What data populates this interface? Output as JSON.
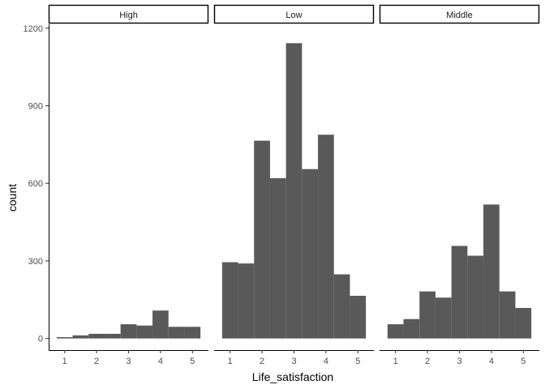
{
  "chart_data": {
    "type": "bar",
    "subtype": "faceted-histogram",
    "xlabel": "Life_satisfaction",
    "ylabel": "count",
    "ylim": [
      -45,
      1215
    ],
    "xlim": [
      0.5,
      5.5
    ],
    "x_ticks": [
      1,
      2,
      3,
      4,
      5
    ],
    "y_ticks": [
      0,
      300,
      600,
      900,
      1200
    ],
    "bin_width": 0.5,
    "grid": false,
    "legend": "none",
    "bar_color": "#595959",
    "facets": [
      {
        "label": "High",
        "bins": [
          {
            "x0": 0.75,
            "x1": 1.25,
            "count": 5
          },
          {
            "x0": 1.25,
            "x1": 1.75,
            "count": 12
          },
          {
            "x0": 1.75,
            "x1": 2.25,
            "count": 18
          },
          {
            "x0": 2.25,
            "x1": 2.75,
            "count": 18
          },
          {
            "x0": 2.75,
            "x1": 3.25,
            "count": 55
          },
          {
            "x0": 3.25,
            "x1": 3.75,
            "count": 50
          },
          {
            "x0": 3.75,
            "x1": 4.25,
            "count": 108
          },
          {
            "x0": 4.25,
            "x1": 4.75,
            "count": 45
          },
          {
            "x0": 4.75,
            "x1": 5.25,
            "count": 45
          }
        ]
      },
      {
        "label": "Low",
        "bins": [
          {
            "x0": 0.75,
            "x1": 1.25,
            "count": 295
          },
          {
            "x0": 1.25,
            "x1": 1.75,
            "count": 290
          },
          {
            "x0": 1.75,
            "x1": 2.25,
            "count": 765
          },
          {
            "x0": 2.25,
            "x1": 2.75,
            "count": 620
          },
          {
            "x0": 2.75,
            "x1": 3.25,
            "count": 1142
          },
          {
            "x0": 3.25,
            "x1": 3.75,
            "count": 655
          },
          {
            "x0": 3.75,
            "x1": 4.25,
            "count": 788
          },
          {
            "x0": 4.25,
            "x1": 4.75,
            "count": 248
          },
          {
            "x0": 4.75,
            "x1": 5.25,
            "count": 165
          }
        ]
      },
      {
        "label": "Middle",
        "bins": [
          {
            "x0": 0.75,
            "x1": 1.25,
            "count": 55
          },
          {
            "x0": 1.25,
            "x1": 1.75,
            "count": 75
          },
          {
            "x0": 1.75,
            "x1": 2.25,
            "count": 182
          },
          {
            "x0": 2.25,
            "x1": 2.75,
            "count": 158
          },
          {
            "x0": 2.75,
            "x1": 3.25,
            "count": 358
          },
          {
            "x0": 3.25,
            "x1": 3.75,
            "count": 320
          },
          {
            "x0": 3.75,
            "x1": 4.25,
            "count": 518
          },
          {
            "x0": 4.25,
            "x1": 4.75,
            "count": 182
          },
          {
            "x0": 4.75,
            "x1": 5.25,
            "count": 118
          }
        ]
      }
    ]
  }
}
